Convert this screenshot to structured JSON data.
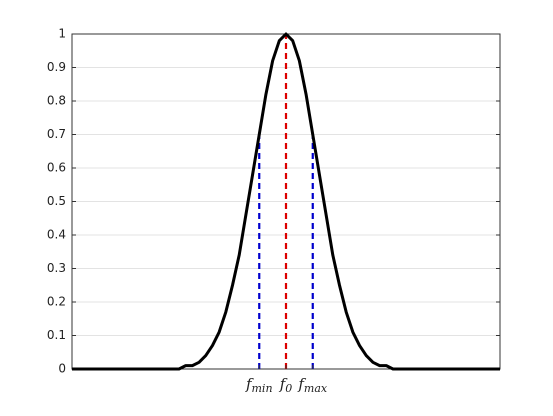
{
  "chart_data": {
    "type": "line",
    "categories": [
      null,
      null,
      null,
      null,
      null,
      null,
      null,
      null,
      null,
      null,
      null,
      null,
      null,
      null,
      null,
      null,
      null,
      null,
      null,
      null,
      null,
      null,
      null,
      null,
      null,
      null,
      null,
      null,
      "fmin",
      null,
      null,
      null,
      "f0",
      null,
      null,
      null,
      "fmax",
      null,
      null,
      null,
      null,
      null,
      null,
      null,
      null,
      null,
      null,
      null,
      null,
      null,
      null,
      null,
      null,
      null,
      null,
      null,
      null,
      null,
      null,
      null,
      null,
      null,
      null,
      null,
      null
    ],
    "series": [
      {
        "color": "#000000",
        "values": [
          0,
          0,
          0,
          0,
          0,
          0,
          0,
          0,
          0,
          0,
          0,
          0,
          0,
          0,
          0,
          0,
          0,
          0.01,
          0.01,
          0.02,
          0.04,
          0.07,
          0.11,
          0.17,
          0.25,
          0.34,
          0.46,
          0.58,
          0.7,
          0.82,
          0.92,
          0.98,
          1,
          0.98,
          0.92,
          0.82,
          0.7,
          0.58,
          0.46,
          0.34,
          0.25,
          0.17,
          0.11,
          0.07,
          0.04,
          0.02,
          0.01,
          0.01,
          0,
          0,
          0,
          0,
          0,
          0,
          0,
          0,
          0,
          0,
          0,
          0,
          0,
          0,
          0,
          0,
          0
        ]
      }
    ],
    "dashed_colors": [
      "#0000cc",
      "#dd0000",
      "#0000cc"
    ],
    "ylim": [
      0,
      1
    ],
    "yticks": [
      0,
      0.1,
      0.2,
      0.3,
      0.4,
      0.5,
      0.6,
      0.7,
      0.8,
      0.9,
      1
    ],
    "grid": true
  }
}
